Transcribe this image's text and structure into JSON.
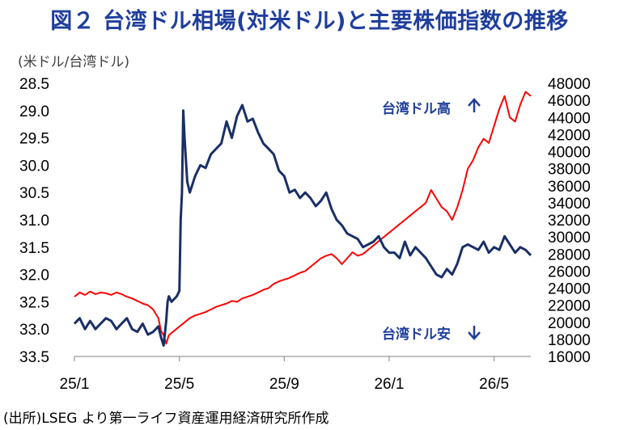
{
  "title": "図２ 台湾ドル相場(対米ドル)と主要株価指数の推移",
  "unit_label": "(米ドル/台湾ドル)",
  "source": "(出所)LSEG より第一ライフ資産運用経済研究所作成",
  "colors": {
    "twd": "#1a2f66",
    "index": "#ff0000",
    "annotation": "#1f3e9c"
  },
  "chart_data": {
    "type": "line",
    "title": "図２ 台湾ドル相場(対米ドル)と主要株価指数の推移",
    "ylabel": "(米ドル/台湾ドル)",
    "x_ticks": [
      "25/1",
      "25/5",
      "25/9",
      "26/1",
      "26/5"
    ],
    "x_tick_months": [
      0,
      4,
      8,
      12,
      16
    ],
    "x_range": [
      0,
      17.4
    ],
    "y_left": {
      "range": [
        28.5,
        33.5
      ],
      "inverted": true,
      "ticks": [
        "28.5",
        "29.0",
        "29.5",
        "30.0",
        "30.5",
        "31.0",
        "31.5",
        "32.0",
        "32.5",
        "33.0",
        "33.5"
      ]
    },
    "y_right": {
      "range": [
        16000,
        48000
      ],
      "ticks": [
        "48000",
        "46000",
        "44000",
        "42000",
        "40000",
        "38000",
        "36000",
        "34000",
        "32000",
        "30000",
        "28000",
        "26000",
        "24000",
        "22000",
        "20000",
        "18000",
        "16000"
      ]
    },
    "annotations": {
      "up": "台湾ドル高",
      "down": "台湾ドル安"
    },
    "series": [
      {
        "axis": "left",
        "x": [
          0,
          0.2,
          0.4,
          0.6,
          0.8,
          1.0,
          1.2,
          1.4,
          1.6,
          1.8,
          2.0,
          2.2,
          2.4,
          2.6,
          2.8,
          3.0,
          3.2,
          3.3,
          3.4,
          3.5,
          3.55,
          3.6,
          3.7,
          3.8,
          3.9,
          4.0,
          4.05,
          4.1,
          4.15,
          4.2,
          4.3,
          4.4,
          4.6,
          4.8,
          5.0,
          5.2,
          5.4,
          5.6,
          5.8,
          6.0,
          6.2,
          6.4,
          6.6,
          6.8,
          7.0,
          7.2,
          7.4,
          7.6,
          7.8,
          8.0,
          8.2,
          8.4,
          8.6,
          8.8,
          9.0,
          9.2,
          9.4,
          9.6,
          9.8,
          10.0,
          10.2,
          10.4,
          10.6,
          10.8,
          11.0,
          11.2,
          11.4,
          11.6,
          11.8,
          12.0,
          12.2,
          12.4,
          12.6,
          12.8,
          13.0,
          13.2,
          13.4,
          13.6,
          13.8,
          14.0,
          14.2,
          14.4,
          14.6,
          14.8,
          15.0,
          15.2,
          15.4,
          15.6,
          15.8,
          16.0,
          16.2,
          16.4,
          16.6,
          16.8,
          17.0,
          17.2,
          17.4
        ],
        "y": [
          32.9,
          32.8,
          33.0,
          32.85,
          33.0,
          32.9,
          32.8,
          32.85,
          33.0,
          32.9,
          32.8,
          33.0,
          33.05,
          32.9,
          33.1,
          33.05,
          32.95,
          33.15,
          33.3,
          32.85,
          32.5,
          32.4,
          32.5,
          32.45,
          32.4,
          32.3,
          31.0,
          30.5,
          29.0,
          29.5,
          30.3,
          30.5,
          30.2,
          30.0,
          30.05,
          29.8,
          29.7,
          29.6,
          29.2,
          29.5,
          29.1,
          28.9,
          29.2,
          29.15,
          29.4,
          29.6,
          29.7,
          29.8,
          30.1,
          30.2,
          30.5,
          30.45,
          30.6,
          30.5,
          30.6,
          30.75,
          30.65,
          30.5,
          30.8,
          31.0,
          31.1,
          31.25,
          31.3,
          31.35,
          31.5,
          31.45,
          31.4,
          31.3,
          31.5,
          31.6,
          31.6,
          31.7,
          31.4,
          31.65,
          31.5,
          31.6,
          31.7,
          31.85,
          32.0,
          32.05,
          31.9,
          32.0,
          31.8,
          31.5,
          31.45,
          31.5,
          31.55,
          31.4,
          31.6,
          31.5,
          31.55,
          31.3,
          31.45,
          31.6,
          31.5,
          31.55,
          31.65
        ]
      },
      {
        "axis": "right",
        "x": [
          0,
          0.2,
          0.4,
          0.6,
          0.8,
          1.0,
          1.2,
          1.4,
          1.6,
          1.8,
          2.0,
          2.2,
          2.4,
          2.6,
          2.8,
          3.0,
          3.2,
          3.3,
          3.4,
          3.5,
          3.6,
          3.8,
          4.0,
          4.2,
          4.4,
          4.6,
          4.8,
          5.0,
          5.2,
          5.4,
          5.6,
          5.8,
          6.0,
          6.2,
          6.4,
          6.6,
          6.8,
          7.0,
          7.2,
          7.4,
          7.6,
          7.8,
          8.0,
          8.2,
          8.4,
          8.6,
          8.8,
          9.0,
          9.2,
          9.4,
          9.6,
          9.8,
          10.0,
          10.2,
          10.4,
          10.6,
          10.8,
          11.0,
          11.2,
          11.4,
          11.6,
          11.8,
          12.0,
          12.2,
          12.4,
          12.6,
          12.8,
          13.0,
          13.2,
          13.4,
          13.6,
          13.8,
          14.0,
          14.2,
          14.4,
          14.6,
          14.8,
          15.0,
          15.2,
          15.4,
          15.6,
          15.8,
          16.0,
          16.2,
          16.4,
          16.6,
          16.8,
          17.0,
          17.2,
          17.4
        ],
        "y": [
          23000,
          23500,
          23200,
          23600,
          23300,
          23500,
          23400,
          23200,
          23500,
          23300,
          23000,
          22800,
          22500,
          22200,
          22000,
          21500,
          20500,
          19000,
          18500,
          17500,
          18500,
          19000,
          19500,
          20000,
          20500,
          20800,
          21000,
          21200,
          21500,
          21800,
          22000,
          22200,
          22500,
          22400,
          22800,
          23000,
          23200,
          23500,
          23800,
          24000,
          24500,
          24800,
          25000,
          25200,
          25500,
          25800,
          26000,
          26500,
          27000,
          27500,
          27800,
          28000,
          27500,
          26800,
          27500,
          28200,
          27800,
          28000,
          28500,
          29000,
          29500,
          30000,
          30500,
          31000,
          31500,
          32000,
          32500,
          33000,
          33500,
          34000,
          35500,
          34500,
          33500,
          33000,
          32000,
          33500,
          35500,
          38000,
          39000,
          40500,
          41500,
          41000,
          43000,
          45000,
          46500,
          44000,
          43500,
          45500,
          47000,
          46500
        ]
      }
    ]
  }
}
